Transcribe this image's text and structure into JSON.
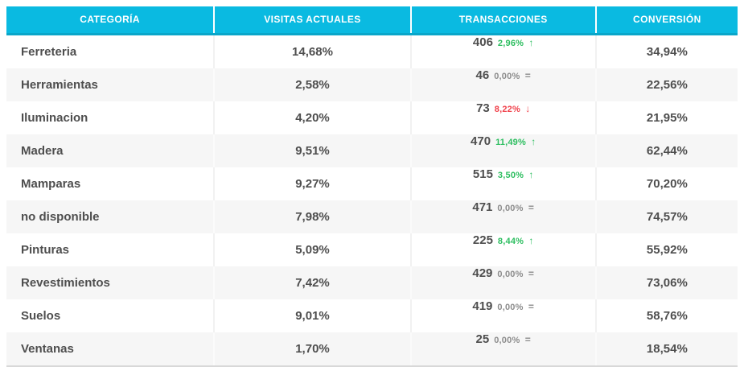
{
  "table": {
    "columns": [
      {
        "key": "category",
        "label": "CATEGORÍA"
      },
      {
        "key": "visits",
        "label": "VISITAS ACTUALES"
      },
      {
        "key": "transactions",
        "label": "TRANSACCIONES"
      },
      {
        "key": "conversion",
        "label": "CONVERSIÓN"
      }
    ],
    "rows": [
      {
        "category": "Ferreteria",
        "visits": "14,68%",
        "transactions": "406",
        "change": "2,96%",
        "trend": "up",
        "conversion": "34,94%"
      },
      {
        "category": "Herramientas",
        "visits": "2,58%",
        "transactions": "46",
        "change": "0,00%",
        "trend": "flat",
        "conversion": "22,56%"
      },
      {
        "category": "Iluminacion",
        "visits": "4,20%",
        "transactions": "73",
        "change": "8,22%",
        "trend": "down",
        "conversion": "21,95%"
      },
      {
        "category": "Madera",
        "visits": "9,51%",
        "transactions": "470",
        "change": "11,49%",
        "trend": "up",
        "conversion": "62,44%"
      },
      {
        "category": "Mamparas",
        "visits": "9,27%",
        "transactions": "515",
        "change": "3,50%",
        "trend": "up",
        "conversion": "70,20%"
      },
      {
        "category": "no disponible",
        "visits": "7,98%",
        "transactions": "471",
        "change": "0,00%",
        "trend": "flat",
        "conversion": "74,57%"
      },
      {
        "category": "Pinturas",
        "visits": "5,09%",
        "transactions": "225",
        "change": "8,44%",
        "trend": "up",
        "conversion": "55,92%"
      },
      {
        "category": "Revestimientos",
        "visits": "7,42%",
        "transactions": "429",
        "change": "0,00%",
        "trend": "flat",
        "conversion": "73,06%"
      },
      {
        "category": "Suelos",
        "visits": "9,01%",
        "transactions": "419",
        "change": "0,00%",
        "trend": "flat",
        "conversion": "58,76%"
      },
      {
        "category": "Ventanas",
        "visits": "1,70%",
        "transactions": "25",
        "change": "0,00%",
        "trend": "flat",
        "conversion": "18,54%"
      }
    ]
  },
  "icons": {
    "up": "↑",
    "down": "↓",
    "flat": "="
  },
  "colors": {
    "header_bg": "#0ABAE1",
    "header_border": "#09A6C9",
    "row_alt_bg": "#F6F6F6",
    "text": "#4E4E4E",
    "trend_up": "#2DBE60",
    "trend_down": "#F0414B",
    "trend_flat": "#8C8C8C"
  }
}
